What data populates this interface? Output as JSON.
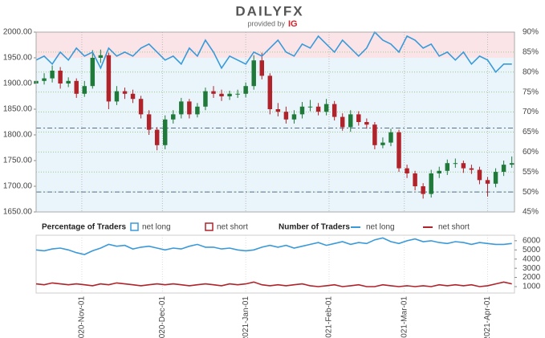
{
  "header": {
    "brand": "DAILYFX",
    "provided_by": "provided by",
    "provider": "IG"
  },
  "chart_data": [
    {
      "type": "candlestick",
      "x": [
        "2020-10-15",
        "2020-10-18",
        "2020-10-21",
        "2020-10-24",
        "2020-10-27",
        "2020-10-30",
        "2020-11-02",
        "2020-11-05",
        "2020-11-08",
        "2020-11-11",
        "2020-11-14",
        "2020-11-17",
        "2020-11-20",
        "2020-11-23",
        "2020-11-26",
        "2020-11-29",
        "2020-12-02",
        "2020-12-05",
        "2020-12-08",
        "2020-12-11",
        "2020-12-14",
        "2020-12-17",
        "2020-12-20",
        "2020-12-23",
        "2020-12-26",
        "2020-12-29",
        "2021-01-01",
        "2021-01-04",
        "2021-01-07",
        "2021-01-10",
        "2021-01-13",
        "2021-01-16",
        "2021-01-19",
        "2021-01-22",
        "2021-01-25",
        "2021-01-28",
        "2021-01-31",
        "2021-02-03",
        "2021-02-06",
        "2021-02-09",
        "2021-02-12",
        "2021-02-15",
        "2021-02-18",
        "2021-02-21",
        "2021-02-24",
        "2021-02-27",
        "2021-03-02",
        "2021-03-05",
        "2021-03-08",
        "2021-03-11",
        "2021-03-14",
        "2021-03-17",
        "2021-03-20",
        "2021-03-23",
        "2021-03-26",
        "2021-03-29",
        "2021-04-01",
        "2021-04-04",
        "2021-04-07",
        "2021-04-10"
      ],
      "open": [
        1900,
        1905,
        1910,
        1925,
        1900,
        1905,
        1880,
        1895,
        1950,
        1955,
        1865,
        1885,
        1880,
        1870,
        1840,
        1810,
        1780,
        1830,
        1840,
        1865,
        1840,
        1855,
        1885,
        1880,
        1875,
        1880,
        1880,
        1895,
        1945,
        1915,
        1850,
        1845,
        1830,
        1840,
        1855,
        1855,
        1845,
        1860,
        1835,
        1815,
        1840,
        1825,
        1820,
        1780,
        1785,
        1805,
        1735,
        1725,
        1700,
        1685,
        1725,
        1730,
        1745,
        1745,
        1735,
        1732,
        1712,
        1705,
        1728,
        1742
      ],
      "high": [
        1915,
        1920,
        1935,
        1932,
        1912,
        1910,
        1905,
        1965,
        1966,
        1960,
        1895,
        1892,
        1888,
        1876,
        1848,
        1815,
        1838,
        1848,
        1872,
        1870,
        1862,
        1892,
        1895,
        1888,
        1886,
        1888,
        1902,
        1955,
        1960,
        1920,
        1862,
        1855,
        1848,
        1864,
        1868,
        1862,
        1870,
        1866,
        1842,
        1848,
        1846,
        1832,
        1825,
        1795,
        1812,
        1810,
        1742,
        1730,
        1706,
        1732,
        1738,
        1752,
        1754,
        1750,
        1742,
        1738,
        1718,
        1735,
        1750,
        1758
      ],
      "low": [
        1892,
        1898,
        1902,
        1890,
        1893,
        1872,
        1874,
        1890,
        1940,
        1850,
        1858,
        1870,
        1862,
        1832,
        1800,
        1770,
        1772,
        1822,
        1832,
        1832,
        1834,
        1848,
        1872,
        1866,
        1868,
        1872,
        1873,
        1888,
        1908,
        1840,
        1836,
        1822,
        1822,
        1832,
        1846,
        1838,
        1838,
        1828,
        1808,
        1806,
        1818,
        1812,
        1772,
        1774,
        1778,
        1728,
        1716,
        1692,
        1676,
        1678,
        1716,
        1722,
        1736,
        1726,
        1724,
        1704,
        1680,
        1698,
        1720,
        1736
      ],
      "close": [
        1905,
        1910,
        1925,
        1900,
        1905,
        1880,
        1895,
        1950,
        1955,
        1865,
        1885,
        1880,
        1870,
        1840,
        1810,
        1780,
        1830,
        1840,
        1865,
        1840,
        1855,
        1885,
        1880,
        1875,
        1880,
        1880,
        1895,
        1945,
        1915,
        1850,
        1845,
        1830,
        1840,
        1855,
        1855,
        1845,
        1860,
        1835,
        1815,
        1840,
        1825,
        1820,
        1780,
        1785,
        1805,
        1735,
        1725,
        1700,
        1685,
        1725,
        1730,
        1745,
        1745,
        1735,
        1732,
        1712,
        1705,
        1728,
        1742,
        1745
      ],
      "up_color": "#1f7a3a",
      "down_color": "#b0232a",
      "series": [
        {
          "color": "#3a9ad9",
          "axis": "y2",
          "values": [
            83,
            84,
            82,
            85,
            83,
            86,
            84,
            85,
            81,
            86,
            84,
            85,
            84,
            86,
            87,
            85,
            83,
            84,
            82,
            86,
            84,
            88,
            85,
            81,
            84,
            83,
            82,
            85,
            84,
            86,
            88,
            85,
            84,
            87,
            86,
            89,
            87,
            85,
            88,
            86,
            84,
            86,
            90,
            88,
            87,
            85,
            89,
            88,
            86,
            87,
            84,
            85,
            83,
            85,
            82,
            84,
            83,
            80,
            82,
            82
          ]
        }
      ],
      "legend": {
        "title": "Percentage of Traders",
        "entries": [
          {
            "name": "net long",
            "color": "#3a9ad9"
          },
          {
            "name": "net short",
            "color": "#b0232a"
          }
        ]
      },
      "reference_lines": [
        {
          "value": 66,
          "axis": "y2"
        },
        {
          "value": 50,
          "axis": "y2"
        }
      ],
      "xlim": [
        "2020-10-15",
        "2021-04-11"
      ],
      "xticks": [
        {
          "value": "2020-11-01",
          "label": "2020-Nov-01"
        },
        {
          "value": "2020-12-01",
          "label": "2020-Dec-01"
        },
        {
          "value": "2021-01-01",
          "label": "2021-Jan-01"
        },
        {
          "value": "2021-02-01",
          "label": "2021-Feb-01"
        },
        {
          "value": "2021-03-01",
          "label": "2021-Mar-01"
        },
        {
          "value": "2021-04-01",
          "label": "2021-Apr-01"
        }
      ],
      "ylim": [
        1650,
        2000
      ],
      "yticks": [
        {
          "value": 1650,
          "label": "1650.00"
        },
        {
          "value": 1700,
          "label": "1700.00"
        },
        {
          "value": 1750,
          "label": "1750.00"
        },
        {
          "value": 1800,
          "label": "1800.00"
        },
        {
          "value": 1850,
          "label": "1850.00"
        },
        {
          "value": 1900,
          "label": "1900.00"
        },
        {
          "value": 1950,
          "label": "1950.00"
        },
        {
          "value": 2000,
          "label": "2000.00"
        }
      ],
      "y2lim": [
        45,
        90
      ],
      "y2ticks": [
        {
          "value": 45,
          "label": "45%"
        },
        {
          "value": 50,
          "label": "50%"
        },
        {
          "value": 55,
          "label": "55%"
        },
        {
          "value": 60,
          "label": "60%"
        },
        {
          "value": 65,
          "label": "65%"
        },
        {
          "value": 70,
          "label": "70%"
        },
        {
          "value": 75,
          "label": "75%"
        },
        {
          "value": 80,
          "label": "80%"
        },
        {
          "value": 85,
          "label": "85%"
        },
        {
          "value": 90,
          "label": "90%"
        }
      ],
      "grid": true
    },
    {
      "type": "line",
      "legend_title": "Number of Traders",
      "series": [
        {
          "name": "net long",
          "color": "#3a9ad9",
          "values": [
            5000,
            4900,
            5100,
            5200,
            5000,
            4700,
            4500,
            4900,
            5200,
            5600,
            5400,
            5500,
            5100,
            5300,
            5400,
            5200,
            5000,
            5200,
            5100,
            5400,
            5600,
            5300,
            5300,
            5100,
            5200,
            5000,
            4900,
            5000,
            5300,
            5500,
            5300,
            5500,
            5200,
            5400,
            5600,
            5800,
            5500,
            5700,
            5900,
            5600,
            5800,
            5700,
            6100,
            6300,
            5900,
            5700,
            6000,
            6200,
            5900,
            6000,
            5800,
            5700,
            5900,
            5800,
            5600,
            5800,
            5700,
            5600,
            5600,
            5700
          ]
        },
        {
          "name": "net short",
          "color": "#b0232a",
          "values": [
            1300,
            1200,
            1400,
            1300,
            1200,
            1300,
            1200,
            1100,
            1300,
            1200,
            1400,
            1300,
            1200,
            1100,
            1200,
            1300,
            1200,
            1300,
            1200,
            1100,
            1200,
            1300,
            1200,
            1100,
            1300,
            1200,
            1300,
            1500,
            1200,
            1100,
            1200,
            1100,
            1200,
            1300,
            1100,
            1000,
            1100,
            1200,
            1000,
            1100,
            1200,
            1000,
            1000,
            1200,
            1100,
            1000,
            1100,
            1000,
            1100,
            1000,
            1200,
            1100,
            1200,
            1100,
            1200,
            1000,
            1100,
            1300,
            1500,
            1300
          ]
        }
      ],
      "ylim": [
        300,
        6600
      ],
      "yticks": [
        1000,
        2000,
        3000,
        4000,
        5000,
        6000
      ]
    }
  ]
}
